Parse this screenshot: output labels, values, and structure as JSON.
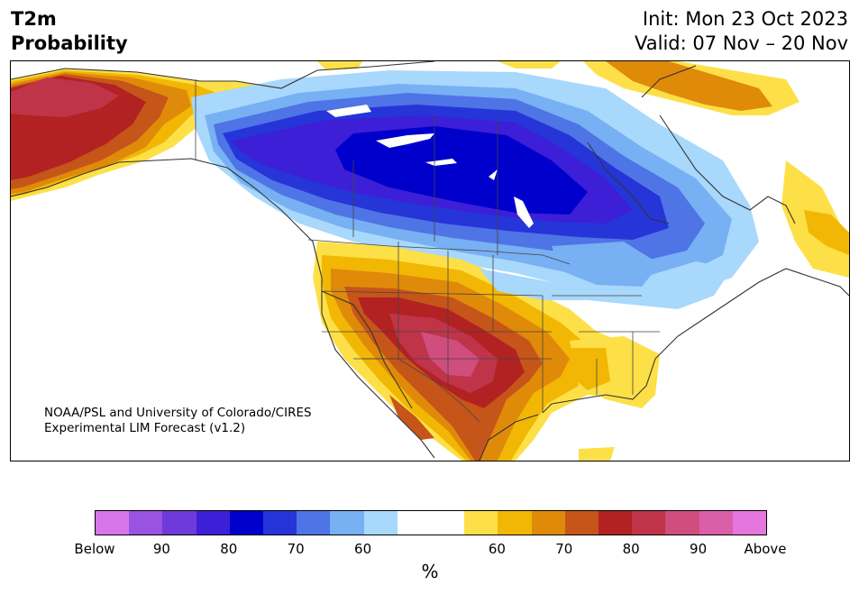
{
  "title": {
    "line1": "T2m",
    "line2": "Probability"
  },
  "header_right": {
    "init": "Init: Mon 23 Oct 2023",
    "valid": "Valid: 07 Nov – 20 Nov"
  },
  "credit": {
    "line1": "NOAA/PSL and University of Colorado/CIRES",
    "line2": "Experimental LIM Forecast (v1.2)"
  },
  "colorbar": {
    "colors": [
      "#d676ea",
      "#9a52e0",
      "#6e3ad9",
      "#3c1fd6",
      "#0000cc",
      "#2535d8",
      "#4f74e6",
      "#77b0f3",
      "#a8d8fb",
      "#ffffff",
      "#ffffff",
      "#fde047",
      "#f2b705",
      "#e08a0a",
      "#c65519",
      "#b22222",
      "#c0344a",
      "#d04e7e",
      "#da5ea8",
      "#e676df"
    ],
    "labels": [
      "Below",
      "90",
      "80",
      "70",
      "60",
      "60",
      "70",
      "80",
      "90",
      "Above"
    ],
    "units": "%"
  },
  "map_colors": {
    "cold_light": "#a8d8fb",
    "cold_2": "#77b0f3",
    "cold_3": "#4f74e6",
    "cold_4": "#2535d8",
    "cold_5": "#0000cc",
    "cold_6": "#3c1fd6",
    "warm_1": "#fde047",
    "warm_2": "#f2b705",
    "warm_3": "#e08a0a",
    "warm_4": "#c65519",
    "warm_5": "#b22222",
    "warm_6": "#c0344a",
    "warm_7": "#d04e7e"
  }
}
